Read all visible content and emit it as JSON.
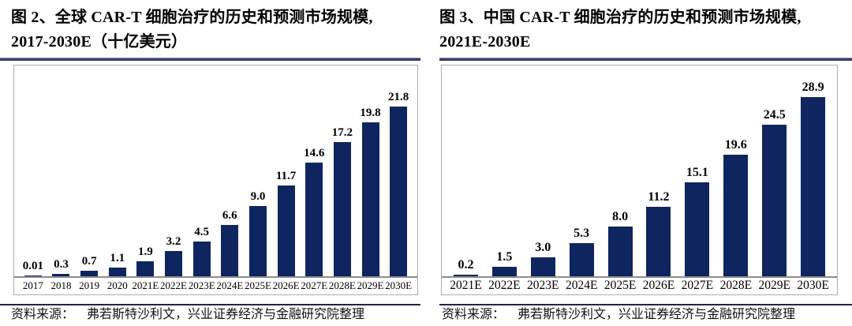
{
  "colors": {
    "bar": "#0f2560",
    "rule_top": "#3a3a6c",
    "rule_bottom": "#232347",
    "frame_border": "#adadad",
    "axis_line": "#8c8c8c"
  },
  "chart_data": [
    {
      "type": "bar",
      "title_line1": "图 2、全球 CAR-T 细胞治疗的历史和预测市场规模,",
      "title_line2": "2017-2030E（十亿美元）",
      "categories": [
        "2017",
        "2018",
        "2019",
        "2020",
        "2021E",
        "2022E",
        "2023E",
        "2024E",
        "2025E",
        "2026E",
        "2027E",
        "2028E",
        "2029E",
        "2030E"
      ],
      "values": [
        0.01,
        0.3,
        0.7,
        1.1,
        1.9,
        3.2,
        4.5,
        6.6,
        9.0,
        11.7,
        14.6,
        17.2,
        19.8,
        21.8
      ],
      "value_labels": [
        "0.01",
        "0.3",
        "0.7",
        "1.1",
        "1.9",
        "3.2",
        "4.5",
        "6.6",
        "9.0",
        "11.7",
        "14.6",
        "17.2",
        "19.8",
        "21.8"
      ],
      "ylim": [
        0,
        22
      ],
      "grid": false,
      "legend_position": "none",
      "bar_color": "#0f2560",
      "source_label": "资料来源：",
      "source_text": "弗若斯特沙利文，兴业证券经济与金融研究院整理"
    },
    {
      "type": "bar",
      "title_line1": "图 3、中国 CAR-T 细胞治疗的历史和预测市场规模,",
      "title_line2": "2021E-2030E",
      "categories": [
        "2021E",
        "2022E",
        "2023E",
        "2024E",
        "2025E",
        "2026E",
        "2027E",
        "2028E",
        "2029E",
        "2030E"
      ],
      "values": [
        0.2,
        1.5,
        3.0,
        5.3,
        8.0,
        11.2,
        15.1,
        19.6,
        24.5,
        28.9
      ],
      "value_labels": [
        "0.2",
        "1.5",
        "3.0",
        "5.3",
        "8.0",
        "11.2",
        "15.1",
        "19.6",
        "24.5",
        "28.9"
      ],
      "ylim": [
        0,
        29.5
      ],
      "grid": false,
      "legend_position": "none",
      "bar_color": "#0f2560",
      "source_label": "资料来源：",
      "source_text": "弗若斯特沙利文，兴业证券经济与金融研究院整理"
    }
  ]
}
